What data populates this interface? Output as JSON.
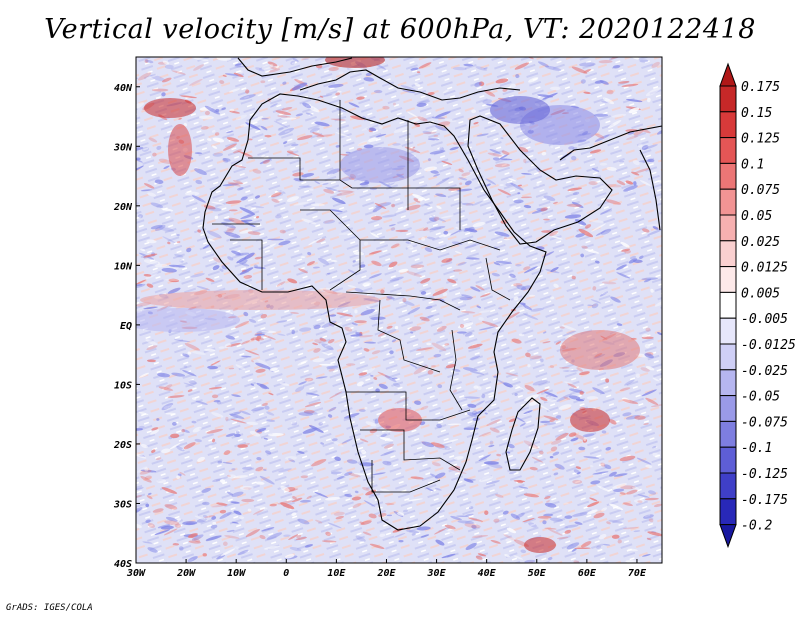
{
  "title": "Vertical velocity [m/s] at 600hPa, VT: 2020122418",
  "footer": "GrADS: IGES/COLA",
  "map": {
    "lon_range": [
      -30,
      75
    ],
    "lat_range": [
      -40,
      45
    ],
    "x_ticks": [
      "30W",
      "20W",
      "10W",
      "0",
      "10E",
      "20E",
      "30E",
      "40E",
      "50E",
      "60E",
      "70E"
    ],
    "y_ticks": [
      "40N",
      "30N",
      "20N",
      "10N",
      "EQ",
      "10S",
      "20S",
      "30S",
      "40S"
    ]
  },
  "colorbar": {
    "labels": [
      "0.175",
      "0.15",
      "0.125",
      "0.1",
      "0.075",
      "0.05",
      "0.025",
      "0.0125",
      "0.005",
      "-0.005",
      "-0.0125",
      "-0.025",
      "-0.05",
      "-0.075",
      "-0.1",
      "-0.125",
      "-0.175",
      "-0.2"
    ],
    "colors": [
      "#b01818",
      "#c62828",
      "#d83a3a",
      "#e45656",
      "#ec7676",
      "#f29494",
      "#f6b0b0",
      "#fad0d0",
      "#fde9e9",
      "#ffffff",
      "#e7e7fb",
      "#cfcff6",
      "#b6b6f0",
      "#9a9ae8",
      "#7e7ee0",
      "#5e5ed6",
      "#3f3fc8",
      "#2828b8",
      "#1818a0"
    ]
  },
  "colors": {
    "background_field": "#d9dcf6",
    "positive": "#e77a7a",
    "negative": "#7f84e6",
    "coast": "#000000"
  }
}
